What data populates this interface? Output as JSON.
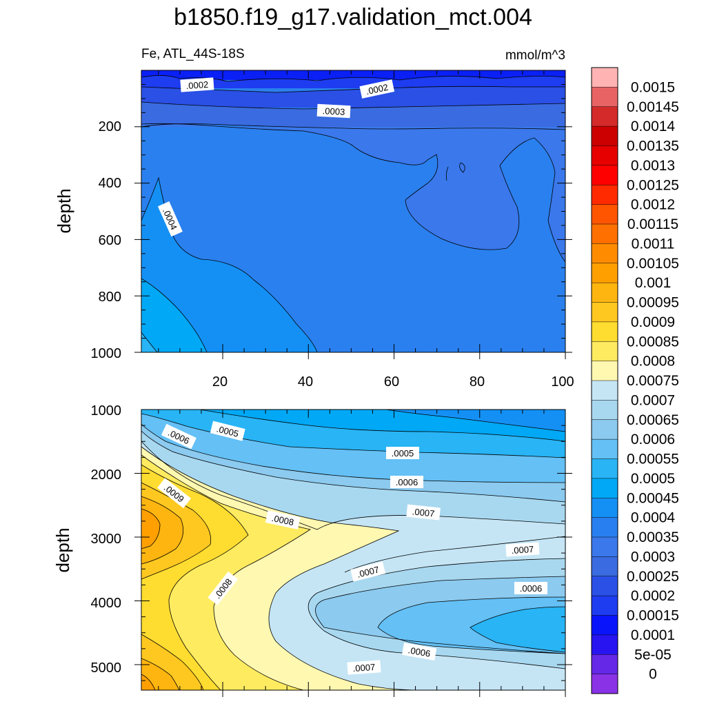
{
  "chart_data": {
    "type": "contour",
    "title": "b1850.f19_g17.validation_mct.004",
    "left_subtitle": "Fe, ATL_44S-18S",
    "right_subtitle": "mmol/m^3",
    "colorbar": {
      "levels": [
        "0.0015",
        "0.00145",
        "0.0014",
        "0.00135",
        "0.0013",
        "0.00125",
        "0.0012",
        "0.00115",
        "0.0011",
        "0.00105",
        "0.001",
        "0.00095",
        "0.0009",
        "0.00085",
        "0.0008",
        "0.00075",
        "0.0007",
        "0.00065",
        "0.0006",
        "0.00055",
        "0.0005",
        "0.00045",
        "0.0004",
        "0.00035",
        "0.0003",
        "0.00025",
        "0.0002",
        "0.00015",
        "0.0001",
        "5e-05",
        "0"
      ],
      "colors": [
        "#ffb3b3",
        "#e86464",
        "#d42a2a",
        "#cc0000",
        "#e60000",
        "#ff0000",
        "#ff2a00",
        "#ff5500",
        "#ff7000",
        "#ff8c00",
        "#ffa000",
        "#ffb510",
        "#ffc820",
        "#ffdc30",
        "#ffeb60",
        "#fff8b0",
        "#c5e5f5",
        "#a8d8f0",
        "#8ccaef",
        "#64c0f5",
        "#28b4f5",
        "#00a8f5",
        "#1490f5",
        "#2880f0",
        "#3a78eb",
        "#3a6be0",
        "#2a50e6",
        "#1e3cf0",
        "#0a14fa",
        "#2814f0",
        "#6428e6",
        "#8a32e6"
      ]
    },
    "panels": [
      {
        "name": "upper",
        "xlim": [
          1,
          100
        ],
        "ylim": [
          1000,
          0
        ],
        "ylabel": "depth",
        "xticks": [
          "20",
          "40",
          "60",
          "80",
          "100"
        ],
        "yticks": [
          "200",
          "400",
          "600",
          "800",
          "1000"
        ],
        "contour_labels": [
          ".0002",
          ".0002",
          ".0003",
          ".0004"
        ]
      },
      {
        "name": "lower",
        "xlim": [
          1,
          100
        ],
        "ylim": [
          5400,
          1000
        ],
        "ylabel": "depth",
        "yticks": [
          "1000",
          "2000",
          "3000",
          "4000",
          "5000"
        ],
        "contour_labels": [
          ".0005",
          ".0006",
          ".0005",
          ".0006",
          ".0009",
          ".0008",
          ".0007",
          ".0007",
          ".0007",
          ".0008",
          ".0006",
          ".0006",
          ".0007"
        ]
      }
    ]
  }
}
